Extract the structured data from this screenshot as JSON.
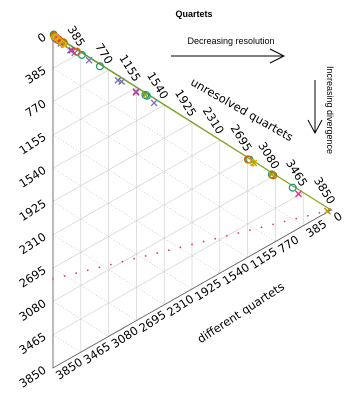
{
  "chart_data": {
    "type": "ternary",
    "title": "Quartets",
    "annotations": {
      "top_arrow": "Decreasing resolution",
      "right_arrow": "Increasing divergence"
    },
    "axes": {
      "right_edge": {
        "label": "unresolved quartets",
        "ticks": [
          "385",
          "770",
          "1155",
          "1540",
          "1925",
          "2310",
          "2695",
          "3080",
          "3465",
          "3850"
        ]
      },
      "bottom_edge": {
        "label": "different quartets",
        "ticks": [
          "0",
          "385",
          "770",
          "1155",
          "1540",
          "1925",
          "2310",
          "2695",
          "3080",
          "3465",
          "3850"
        ]
      },
      "left_edge": {
        "label": "",
        "ticks": [
          "0",
          "385",
          "770",
          "1155",
          "1540",
          "1925",
          "2310",
          "2695",
          "3080",
          "3465",
          "3850"
        ]
      },
      "range": [
        0,
        3850
      ],
      "grid": true
    },
    "colors": {
      "teal": "#1b9e77",
      "orange": "#d95f02",
      "purple": "#7570b3",
      "pink": "#e7298a",
      "olive": "#a6a200",
      "gold": "#e6ab02",
      "grid": "#cccccc",
      "dotted": "#bbbbbb"
    },
    "series": [
      {
        "color": "#1b9e77",
        "marker": "circle",
        "points": [
          [
            10,
            3850
          ],
          [
            20,
            3820
          ],
          [
            30,
            3800
          ],
          [
            60,
            3770
          ],
          [
            90,
            3740
          ],
          [
            110,
            3720
          ],
          [
            150,
            3690
          ],
          [
            400,
            3430
          ],
          [
            650,
            3180
          ],
          [
            1280,
            2550
          ],
          [
            1300,
            2530
          ],
          [
            2720,
            1120
          ],
          [
            3030,
            800
          ],
          [
            3320,
            510
          ]
        ]
      },
      {
        "color": "#d95f02",
        "marker": "circle",
        "points": [
          [
            15,
            3835
          ],
          [
            50,
            3790
          ],
          [
            80,
            3760
          ],
          [
            120,
            3710
          ],
          [
            140,
            3700
          ],
          [
            330,
            3500
          ],
          [
            2700,
            1130
          ],
          [
            3050,
            780
          ]
        ]
      },
      {
        "color": "#7570b3",
        "marker": "x",
        "points": [
          [
            30,
            3810
          ],
          [
            60,
            3770
          ],
          [
            110,
            3700
          ],
          [
            240,
            3560
          ],
          [
            300,
            3500
          ],
          [
            500,
            3320
          ],
          [
            900,
            2900
          ],
          [
            950,
            2860
          ],
          [
            1150,
            2650
          ],
          [
            1400,
            2400
          ],
          [
            3800,
            10
          ]
        ]
      },
      {
        "color": "#e7298a",
        "marker": "x",
        "points": [
          [
            40,
            3800
          ],
          [
            70,
            3760
          ],
          [
            150,
            3670
          ],
          [
            260,
            3550
          ],
          [
            1150,
            2640
          ],
          [
            3400,
            400
          ],
          [
            3800,
            10
          ]
        ]
      },
      {
        "color": "#a6a200",
        "marker": "x",
        "points": [
          [
            20,
            3820
          ],
          [
            160,
            3660
          ],
          [
            1280,
            2550
          ],
          [
            2780,
            1050
          ],
          [
            3030,
            800
          ],
          [
            3800,
            10
          ]
        ]
      },
      {
        "color": "#e6ab02",
        "marker": "diamond",
        "points": [
          [
            25,
            3815
          ],
          [
            45,
            3800
          ],
          [
            90,
            3740
          ],
          [
            130,
            3690
          ],
          [
            140,
            3680
          ],
          [
            2770,
            1060
          ]
        ]
      }
    ],
    "lines": [
      {
        "color": "#1b9e77",
        "points": [
          [
            10,
            3850
          ],
          [
            3850,
            0
          ]
        ]
      },
      {
        "color": "#a6a200",
        "points": [
          [
            0,
            3850
          ],
          [
            3850,
            0
          ]
        ]
      }
    ],
    "reference_line": {
      "style": "dotted",
      "color": "#e7298a",
      "points": [
        [
          0,
          1030
        ],
        [
          3850,
          0
        ]
      ]
    }
  }
}
